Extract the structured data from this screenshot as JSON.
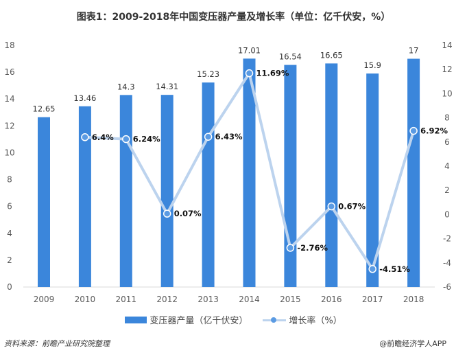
{
  "title": "图表1：2009-2018年中国变压器产量及增长率（单位：亿千伏安，%）",
  "source": "资料来源：前瞻产业研究院整理",
  "credit": "@前瞻经济学人APP",
  "chart_data": {
    "type": "bar+line",
    "categories": [
      "2009",
      "2010",
      "2011",
      "2012",
      "2013",
      "2014",
      "2015",
      "2016",
      "2017",
      "2018"
    ],
    "series": [
      {
        "name": "变压器产量（亿千伏安）",
        "type": "bar",
        "axis": "left",
        "color": "#3b86db",
        "values": [
          12.65,
          13.46,
          14.3,
          14.31,
          15.23,
          17.01,
          16.54,
          16.65,
          15.9,
          17
        ],
        "labels": [
          "12.65",
          "13.46",
          "14.3",
          "14.31",
          "15.23",
          "17.01",
          "16.54",
          "16.65",
          "15.9",
          "17"
        ]
      },
      {
        "name": "增长率（%）",
        "type": "line",
        "axis": "right",
        "color": "#bcd3ee",
        "marker_color": "#5b9be3",
        "values": [
          null,
          6.4,
          6.24,
          0.07,
          6.43,
          11.69,
          -2.76,
          0.67,
          -4.51,
          6.92
        ],
        "labels": [
          "",
          "6.4%",
          "6.24%",
          "0.07%",
          "6.43%",
          "11.69%",
          "-2.76%",
          "0.67%",
          "-4.51%",
          "6.92%"
        ]
      }
    ],
    "left_axis": {
      "range": [
        0,
        18
      ],
      "ticks": [
        "0",
        "2",
        "4",
        "6",
        "8",
        "10",
        "12",
        "14",
        "16",
        "18"
      ]
    },
    "right_axis": {
      "range": [
        -6,
        14
      ],
      "ticks": [
        "-6",
        "-4",
        "-2",
        "0",
        "2",
        "4",
        "6",
        "8",
        "10",
        "12",
        "14"
      ]
    },
    "grid": false,
    "legend": "bottom"
  }
}
